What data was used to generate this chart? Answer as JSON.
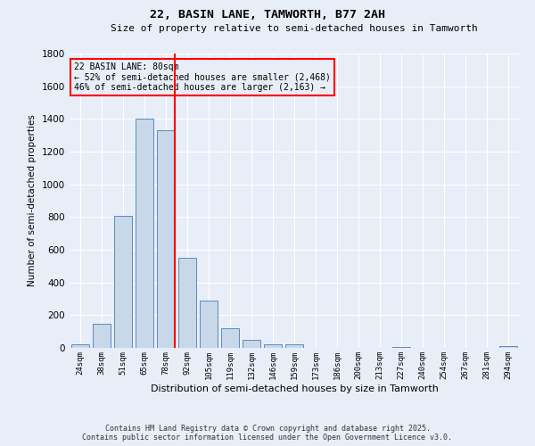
{
  "title1": "22, BASIN LANE, TAMWORTH, B77 2AH",
  "title2": "Size of property relative to semi-detached houses in Tamworth",
  "xlabel": "Distribution of semi-detached houses by size in Tamworth",
  "ylabel": "Number of semi-detached properties",
  "bar_color": "#c8d8e8",
  "bar_edge_color": "#5a8abf",
  "background_color": "#e8eef8",
  "grid_color": "#ffffff",
  "categories": [
    "24sqm",
    "38sqm",
    "51sqm",
    "65sqm",
    "78sqm",
    "92sqm",
    "105sqm",
    "119sqm",
    "132sqm",
    "146sqm",
    "159sqm",
    "173sqm",
    "186sqm",
    "200sqm",
    "213sqm",
    "227sqm",
    "240sqm",
    "254sqm",
    "267sqm",
    "281sqm",
    "294sqm"
  ],
  "values": [
    20,
    150,
    810,
    1400,
    1330,
    550,
    290,
    120,
    50,
    20,
    20,
    0,
    0,
    0,
    0,
    5,
    0,
    0,
    0,
    0,
    10
  ],
  "ylim": [
    0,
    1800
  ],
  "yticks": [
    0,
    200,
    400,
    600,
    800,
    1000,
    1200,
    1400,
    1600,
    1800
  ],
  "red_line_x": 4,
  "annotation_text": "22 BASIN LANE: 80sqm\n← 52% of semi-detached houses are smaller (2,468)\n46% of semi-detached houses are larger (2,163) →",
  "footnote1": "Contains HM Land Registry data © Crown copyright and database right 2025.",
  "footnote2": "Contains public sector information licensed under the Open Government Licence v3.0."
}
